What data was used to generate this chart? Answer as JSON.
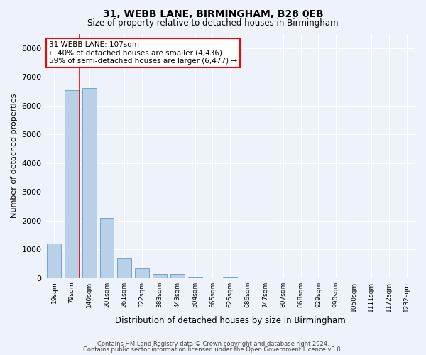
{
  "title1": "31, WEBB LANE, BIRMINGHAM, B28 0EB",
  "title2": "Size of property relative to detached houses in Birmingham",
  "xlabel": "Distribution of detached houses by size in Birmingham",
  "ylabel": "Number of detached properties",
  "bar_labels": [
    "19sqm",
    "79sqm",
    "140sqm",
    "201sqm",
    "261sqm",
    "322sqm",
    "383sqm",
    "443sqm",
    "504sqm",
    "565sqm",
    "625sqm",
    "686sqm",
    "747sqm",
    "807sqm",
    "868sqm",
    "929sqm",
    "990sqm",
    "1050sqm",
    "1111sqm",
    "1172sqm",
    "1232sqm"
  ],
  "bar_values": [
    1200,
    6550,
    6620,
    2100,
    680,
    340,
    150,
    145,
    50,
    5,
    50,
    5,
    5,
    0,
    0,
    0,
    0,
    0,
    0,
    0,
    0
  ],
  "bar_color": "#b8d0e8",
  "bar_edge_color": "#6699cc",
  "red_line_x": 1.45,
  "annotation_text": "31 WEBB LANE: 107sqm\n← 40% of detached houses are smaller (4,436)\n59% of semi-detached houses are larger (6,477) →",
  "annotation_box_color": "white",
  "annotation_box_edge": "red",
  "ylim": [
    0,
    8500
  ],
  "yticks": [
    0,
    1000,
    2000,
    3000,
    4000,
    5000,
    6000,
    7000,
    8000
  ],
  "footer1": "Contains HM Land Registry data © Crown copyright and database right 2024.",
  "footer2": "Contains public sector information licensed under the Open Government Licence v3.0.",
  "bg_color": "#eef2fa",
  "plot_bg_color": "#eef2fa",
  "grid_color": "#ffffff"
}
